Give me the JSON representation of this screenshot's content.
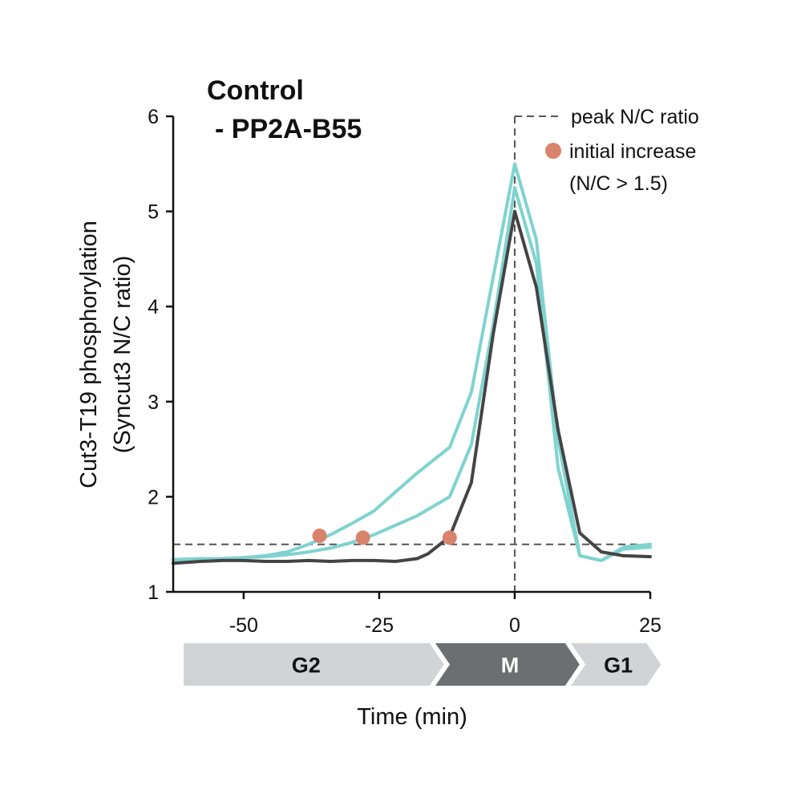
{
  "chart_data": {
    "type": "line",
    "title": "",
    "xlabel": "Time (min)",
    "ylabel_line1": "Cut3-T19 phosphorylation",
    "ylabel_line2": "(Syncut3 N/C ratio)",
    "xlim": [
      -63,
      25
    ],
    "ylim": [
      1,
      6
    ],
    "xticks": [
      -50,
      -25,
      0,
      25
    ],
    "xtick_labels": [
      "-50",
      "-25",
      "0",
      "25"
    ],
    "yticks": [
      1,
      2,
      3,
      4,
      5,
      6
    ],
    "ytick_labels": [
      "1",
      "2",
      "3",
      "4",
      "5",
      "6"
    ],
    "threshold": 1.5,
    "peak_x": 0,
    "series_titles": [
      {
        "name": "control",
        "text": "Control",
        "color": "#111111"
      },
      {
        "name": "pp2a",
        "text": "- PP2A-B55",
        "color": "#4fc0bb"
      }
    ],
    "series": [
      {
        "name": "Control",
        "color": "#444444",
        "x": [
          -63,
          -58,
          -54,
          -50,
          -46,
          -42,
          -38,
          -34,
          -30,
          -26,
          -22,
          -18,
          -16,
          -12,
          -8,
          -4,
          0,
          4,
          8,
          12,
          16,
          20,
          25
        ],
        "y": [
          1.3,
          1.32,
          1.33,
          1.33,
          1.32,
          1.32,
          1.33,
          1.32,
          1.33,
          1.33,
          1.32,
          1.35,
          1.4,
          1.58,
          2.15,
          3.7,
          5.0,
          4.2,
          2.7,
          1.62,
          1.42,
          1.38,
          1.37
        ]
      },
      {
        "name": "- PP2A-B55 (1)",
        "color": "#7fd3cf",
        "x": [
          -63,
          -58,
          -54,
          -50,
          -46,
          -42,
          -38,
          -34,
          -30,
          -26,
          -22,
          -18,
          -12,
          -8,
          -4,
          0,
          4,
          8,
          12,
          16,
          20,
          25
        ],
        "y": [
          1.33,
          1.34,
          1.35,
          1.36,
          1.38,
          1.42,
          1.5,
          1.6,
          1.72,
          1.85,
          2.05,
          2.25,
          2.52,
          3.1,
          4.3,
          5.5,
          4.7,
          2.6,
          1.38,
          1.33,
          1.47,
          1.5
        ]
      },
      {
        "name": "- PP2A-B55 (2)",
        "color": "#7fd3cf",
        "x": [
          -63,
          -58,
          -54,
          -50,
          -46,
          -42,
          -38,
          -34,
          -30,
          -26,
          -22,
          -18,
          -12,
          -8,
          -4,
          0,
          4,
          8,
          12,
          16,
          20,
          25
        ],
        "y": [
          1.34,
          1.35,
          1.35,
          1.36,
          1.37,
          1.39,
          1.42,
          1.46,
          1.52,
          1.6,
          1.7,
          1.8,
          2.0,
          2.55,
          3.8,
          5.25,
          4.45,
          2.3,
          1.38,
          1.33,
          1.45,
          1.47
        ]
      }
    ],
    "initial_increase_points": [
      {
        "x": -36,
        "y": 1.59
      },
      {
        "x": -28,
        "y": 1.57
      },
      {
        "x": -12,
        "y": 1.57
      }
    ],
    "legend": [
      {
        "key": "peak",
        "label": "peak N/C ratio"
      },
      {
        "key": "increase",
        "label_line1": "initial increase",
        "label_line2": "(N/C > 1.5)"
      }
    ],
    "phases": [
      {
        "label": "G2",
        "from": -61.5,
        "to": -12.5,
        "color": "#d1d3d6",
        "label_color": "#111111"
      },
      {
        "label": "M",
        "from": -12.5,
        "to": 12.5,
        "color": "#6d6e71",
        "label_color": "#ffffff"
      },
      {
        "label": "G1",
        "from": 12.5,
        "to": 27.5,
        "color": "#d1d3d6",
        "label_color": "#111111"
      }
    ],
    "colors": {
      "control": "#444444",
      "pp2a": "#7fd3cf",
      "pp2a_title": "#4fc0bb",
      "marker": "#d9826c",
      "dashed": "#555555",
      "axis": "#111111"
    }
  }
}
